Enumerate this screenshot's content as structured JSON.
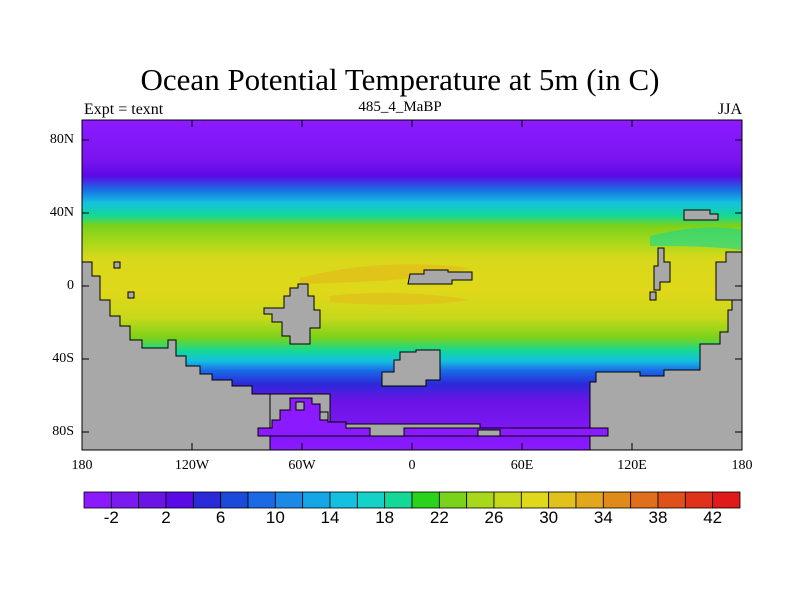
{
  "title": "Ocean Potential Temperature at 5m (in C)",
  "left_label": "Expt = texnt",
  "center_label": "485_4_MaBP",
  "right_label": "JJA",
  "lat_ticks": [
    "80N",
    "40N",
    "0",
    "40S",
    "80S"
  ],
  "lon_ticks": [
    "180",
    "120W",
    "60W",
    "0",
    "60E",
    "120E",
    "180"
  ],
  "colorbar": {
    "labels": [
      "-2",
      "2",
      "6",
      "10",
      "14",
      "18",
      "22",
      "26",
      "30",
      "34",
      "38",
      "42"
    ],
    "colors": [
      "#8c1aff",
      "#7a1af0",
      "#6a14e6",
      "#5a0ae6",
      "#2a2ad9",
      "#1a4ad9",
      "#1a6ae6",
      "#1a8ae6",
      "#14a6e6",
      "#14c0e0",
      "#14d2c8",
      "#14d898",
      "#2ad21a",
      "#7ad21a",
      "#a8d81a",
      "#c8d81a",
      "#e0d81a",
      "#e0c21a",
      "#e0a81a",
      "#e08a1a",
      "#e06e1a",
      "#e0501a",
      "#e0321a",
      "#e01a1a"
    ]
  },
  "land_color": "#a8a8a8"
}
